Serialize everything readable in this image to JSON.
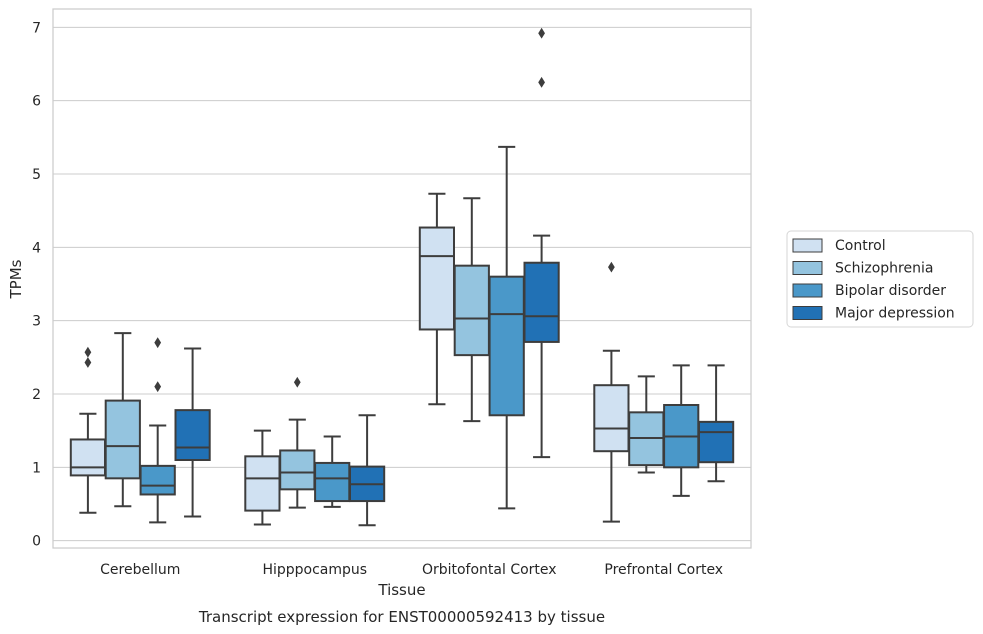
{
  "chart_data": {
    "type": "box",
    "title": "",
    "caption": "Transcript expression for ENST00000592413 by tissue",
    "xlabel": "Tissue",
    "ylabel": "TPMs",
    "ylim": [
      -0.1,
      7.25
    ],
    "yticks": [
      0,
      1,
      2,
      3,
      4,
      5,
      6,
      7
    ],
    "grid": "horizontal",
    "legend_position": "right",
    "categories": [
      "Cerebellum",
      "Hipppocampus",
      "Orbitofontal Cortex",
      "Prefrontal Cortex"
    ],
    "series": [
      {
        "name": "Control",
        "color": "#d0e1f2",
        "boxes": [
          {
            "whisker_low": 0.38,
            "q1": 0.89,
            "median": 1.0,
            "q3": 1.38,
            "whisker_high": 1.73,
            "outliers": [
              2.43,
              2.57
            ]
          },
          {
            "whisker_low": 0.22,
            "q1": 0.41,
            "median": 0.85,
            "q3": 1.15,
            "whisker_high": 1.5,
            "outliers": []
          },
          {
            "whisker_low": 1.86,
            "q1": 2.88,
            "median": 3.88,
            "q3": 4.27,
            "whisker_high": 4.73,
            "outliers": []
          },
          {
            "whisker_low": 0.26,
            "q1": 1.22,
            "median": 1.53,
            "q3": 2.12,
            "whisker_high": 2.59,
            "outliers": [
              3.73
            ]
          }
        ]
      },
      {
        "name": "Schizophrenia",
        "color": "#94c4df",
        "boxes": [
          {
            "whisker_low": 0.47,
            "q1": 0.85,
            "median": 1.29,
            "q3": 1.91,
            "whisker_high": 2.83,
            "outliers": []
          },
          {
            "whisker_low": 0.45,
            "q1": 0.7,
            "median": 0.93,
            "q3": 1.23,
            "whisker_high": 1.65,
            "outliers": [
              2.16
            ]
          },
          {
            "whisker_low": 1.63,
            "q1": 2.53,
            "median": 3.03,
            "q3": 3.75,
            "whisker_high": 4.67,
            "outliers": []
          },
          {
            "whisker_low": 0.93,
            "q1": 1.03,
            "median": 1.4,
            "q3": 1.75,
            "whisker_high": 2.24,
            "outliers": []
          }
        ]
      },
      {
        "name": "Bipolar disorder",
        "color": "#4a98c9",
        "boxes": [
          {
            "whisker_low": 0.25,
            "q1": 0.63,
            "median": 0.75,
            "q3": 1.02,
            "whisker_high": 1.57,
            "outliers": [
              2.1,
              2.7
            ]
          },
          {
            "whisker_low": 0.46,
            "q1": 0.54,
            "median": 0.85,
            "q3": 1.06,
            "whisker_high": 1.42,
            "outliers": []
          },
          {
            "whisker_low": 0.44,
            "q1": 1.71,
            "median": 3.09,
            "q3": 3.6,
            "whisker_high": 5.37,
            "outliers": []
          },
          {
            "whisker_low": 0.61,
            "q1": 1.0,
            "median": 1.42,
            "q3": 1.85,
            "whisker_high": 2.39,
            "outliers": []
          }
        ]
      },
      {
        "name": "Major depression",
        "color": "#2171b5",
        "boxes": [
          {
            "whisker_low": 0.33,
            "q1": 1.1,
            "median": 1.27,
            "q3": 1.78,
            "whisker_high": 2.62,
            "outliers": []
          },
          {
            "whisker_low": 0.21,
            "q1": 0.54,
            "median": 0.77,
            "q3": 1.01,
            "whisker_high": 1.71,
            "outliers": []
          },
          {
            "whisker_low": 1.14,
            "q1": 2.71,
            "median": 3.06,
            "q3": 3.79,
            "whisker_high": 4.16,
            "outliers": [
              6.25,
              6.92
            ]
          },
          {
            "whisker_low": 0.81,
            "q1": 1.07,
            "median": 1.48,
            "q3": 1.62,
            "whisker_high": 2.39,
            "outliers": []
          }
        ]
      }
    ],
    "outlier_overrides_note": ""
  }
}
